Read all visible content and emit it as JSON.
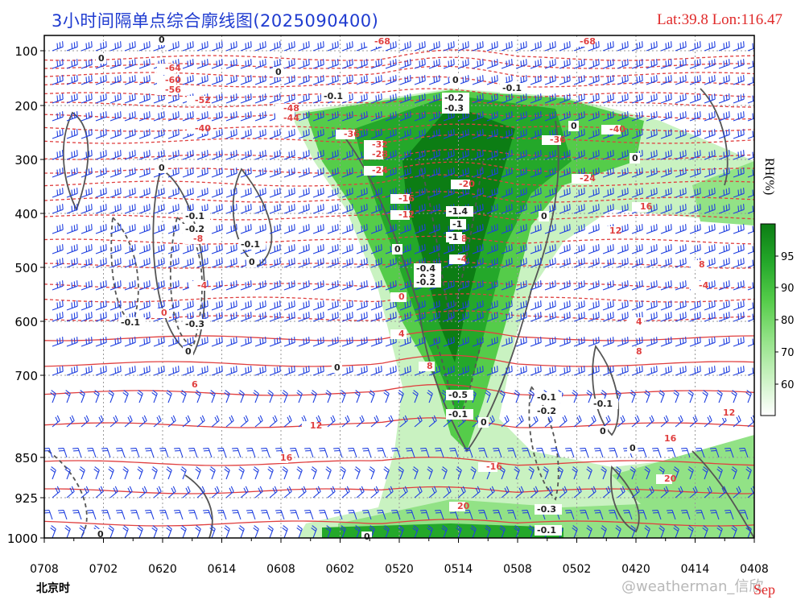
{
  "title": "3小时间隔单点综合廓线图(2025090400)",
  "lat_lon": "Lat:39.8  Lon:116.47",
  "time_zone_label": "北京时",
  "month_label": "Sep",
  "watermark": "@weatherman_信欣",
  "colorbar_label": "RH(%)",
  "colors": {
    "title": "#1f3bd0",
    "temperature_contour": "#e04040",
    "vertical_velocity_contour": "#555555",
    "wind_barb": "#2040e0",
    "rh_fill": [
      "#ffffff",
      "#c9f2c1",
      "#92e286",
      "#55cc4a",
      "#24a82a",
      "#0c7d14"
    ]
  },
  "chart_data": {
    "type": "heatmap",
    "description_of_axes": "time-pressure cross section",
    "x_ticks": [
      "0708",
      "0702",
      "0620",
      "0614",
      "0608",
      "0602",
      "0520",
      "0514",
      "0508",
      "0502",
      "0420",
      "0414",
      "0408"
    ],
    "y_ticks": [
      100,
      200,
      300,
      400,
      500,
      600,
      700,
      850,
      925,
      1000
    ],
    "y_scale": "pressure (inverted, top = 100 hPa)",
    "colorbar": {
      "label": "RH(%)",
      "ticks": [
        60,
        70,
        80,
        90,
        95
      ]
    },
    "temperature_labels": [
      "-68",
      "-64",
      "-60",
      "-56",
      "-52",
      "-48",
      "-44",
      "-40",
      "-36",
      "-32",
      "-28",
      "-24",
      "-20",
      "-16",
      "-12",
      "-8",
      "-4",
      "0",
      "4",
      "8",
      "12",
      "16",
      "20"
    ],
    "vertical_velocity_labels": [
      "0",
      "-0.1",
      "-0.2",
      "-0.3",
      "-0.4",
      "-0.5",
      "-1",
      "-1.4"
    ],
    "grid": true
  }
}
